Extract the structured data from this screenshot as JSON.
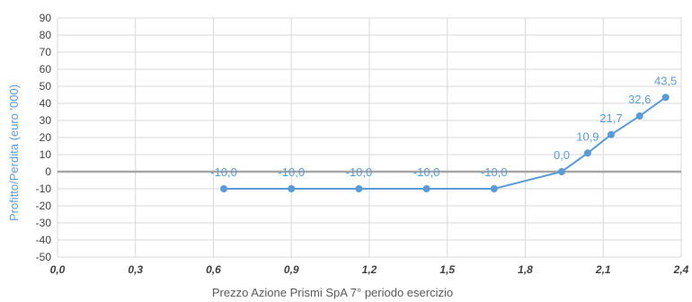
{
  "chart_data": {
    "type": "line",
    "title": "",
    "xlabel": "Prezzo Azione Prismi SpA 7° periodo esercizio",
    "ylabel": "Profitto/Perdita  (euro '000)",
    "xlim": [
      0,
      2.4
    ],
    "ylim": [
      -50,
      90
    ],
    "x_ticks": [
      {
        "value": 0.0,
        "label": "0,0"
      },
      {
        "value": 0.3,
        "label": "0,3"
      },
      {
        "value": 0.6,
        "label": "0,6"
      },
      {
        "value": 0.9,
        "label": "0,9"
      },
      {
        "value": 1.2,
        "label": "1,2"
      },
      {
        "value": 1.5,
        "label": "1,5"
      },
      {
        "value": 1.8,
        "label": "1,8"
      },
      {
        "value": 2.1,
        "label": "2,1"
      },
      {
        "value": 2.4,
        "label": "2,4"
      }
    ],
    "y_ticks": [
      90,
      80,
      70,
      60,
      50,
      40,
      30,
      20,
      10,
      0,
      -10,
      -20,
      -30,
      -40,
      -50
    ],
    "grid": true,
    "series": [
      {
        "color": "#5b9bd5",
        "x": [
          0.64,
          0.9,
          1.16,
          1.42,
          1.68,
          1.94,
          2.04,
          2.13,
          2.24,
          2.34
        ],
        "y": [
          -10,
          -10,
          -10,
          -10,
          -10,
          0,
          10.9,
          21.7,
          32.6,
          43.5
        ],
        "labels": [
          "-10,0",
          "-10,0",
          "-10,0",
          "-10,0",
          "-10,0",
          "0,0",
          "10,9",
          "21,7",
          "32,6",
          "43,5"
        ]
      }
    ]
  }
}
